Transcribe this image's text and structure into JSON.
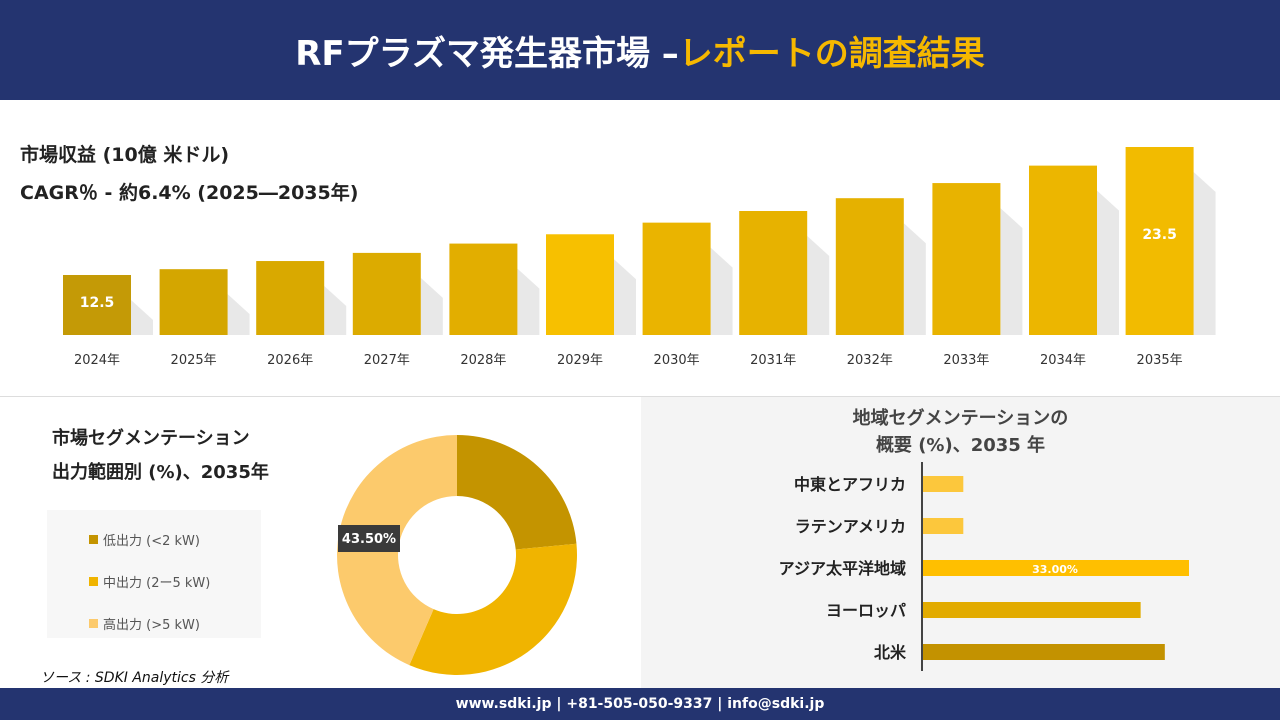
{
  "header": {
    "title_white": "RFプラズマ発生器市場 –",
    "title_yellow": "レポートの調査結果"
  },
  "colors": {
    "navy": "#243470",
    "accent": "#f6b800"
  },
  "chart_data": [
    {
      "type": "bar",
      "title": "市場収益 (10億 米ドル)",
      "subtitle": "CAGR％ - 約6.4% (2025―2035年)",
      "categories": [
        "2024年",
        "2025年",
        "2026年",
        "2027年",
        "2028年",
        "2029年",
        "2030年",
        "2031年",
        "2032年",
        "2033年",
        "2034年",
        "2035年"
      ],
      "values": [
        12.5,
        13.0,
        13.7,
        14.4,
        15.2,
        16.0,
        17.0,
        18.0,
        19.1,
        20.4,
        21.9,
        23.5
      ],
      "data_labels": {
        "0": "12.5",
        "11": "23.5"
      },
      "colors": [
        "#c49a06",
        "#d4a600",
        "#d9a900",
        "#dcab00",
        "#e2ae00",
        "#f7c000",
        "#eab400",
        "#e7b200",
        "#e5b100",
        "#e8b300",
        "#ecb600",
        "#f2bb00"
      ],
      "ylim": [
        7.3,
        24
      ]
    },
    {
      "type": "pie",
      "title": "市場セグメンテーション",
      "subtitle": "出力範囲別 (%)、2035年",
      "labels": [
        "低出力 (<2 kW)",
        "中出力 (2ー5 kW)",
        "高出力 (>5 kW)"
      ],
      "values": [
        23.5,
        33.0,
        43.5
      ],
      "colors": [
        "#c49400",
        "#f0b400",
        "#fcca6c"
      ],
      "data_label": "43.50%"
    },
    {
      "type": "bar",
      "orientation": "horizontal",
      "title": "地域セグメンテーションの",
      "subtitle": "概要 (%)、2035 年",
      "categories": [
        "中東とアフリカ",
        "ラテンアメリカ",
        "アジア太平洋地域",
        "ヨーロッパ",
        "北米"
      ],
      "values": [
        5,
        5,
        33,
        27,
        30
      ],
      "data_label": "33.00%",
      "colors": [
        "#fcc73c",
        "#fcc73c",
        "#ffbf00",
        "#e2ab00",
        "#c39200"
      ],
      "xlim": [
        0,
        33
      ]
    }
  ],
  "source": "ソース : SDKI Analytics 分析",
  "footer": "www.sdki.jp | +81-505-050-9337 | info@sdki.jp"
}
